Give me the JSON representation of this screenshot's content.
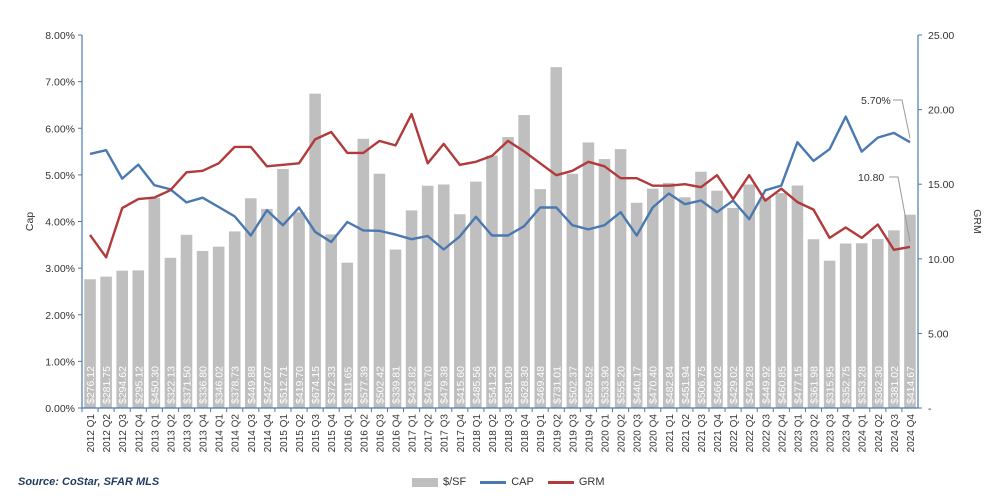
{
  "chart_data": {
    "type": "bar",
    "categories": [
      "2012 Q1",
      "2012 Q2",
      "2012 Q3",
      "2012 Q4",
      "2013 Q1",
      "2013 Q2",
      "2013 Q3",
      "2013 Q4",
      "2014 Q1",
      "2014 Q2",
      "2014 Q3",
      "2014 Q4",
      "2015 Q1",
      "2015 Q2",
      "2015 Q3",
      "2015 Q4",
      "2016 Q1",
      "2016 Q2",
      "2016 Q3",
      "2016 Q4",
      "2017 Q1",
      "2017 Q2",
      "2017 Q3",
      "2017 Q4",
      "2018 Q1",
      "2018 Q2",
      "2018 Q3",
      "2018 Q4",
      "2019 Q1",
      "2019 Q2",
      "2019 Q3",
      "2019 Q4",
      "2020 Q1",
      "2020 Q2",
      "2020 Q3",
      "2020 Q4",
      "2021 Q1",
      "2021 Q2",
      "2021 Q3",
      "2021 Q4",
      "2022 Q1",
      "2022 Q2",
      "2022 Q3",
      "2022 Q4",
      "2023 Q1",
      "2023 Q2",
      "2023 Q3",
      "2023 Q4",
      "2024 Q1",
      "2024 Q2",
      "2024 Q3",
      "2024 Q4"
    ],
    "series": [
      {
        "name": "$/SF",
        "axis": "none",
        "color": "#bfbfbf",
        "values": [
          276.12,
          281.75,
          294.62,
          295.12,
          450.3,
          322.13,
          371.5,
          336.8,
          346.02,
          378.73,
          449.88,
          427.07,
          512.71,
          419.7,
          674.15,
          372.33,
          311.65,
          577.39,
          502.42,
          339.81,
          423.82,
          476.7,
          479.38,
          415.6,
          485.56,
          541.23,
          581.09,
          628.3,
          469.48,
          731.01,
          502.37,
          569.52,
          533.9,
          555.2,
          440.17,
          470.4,
          482.84,
          451.94,
          506.75,
          466.02,
          429.02,
          479.28,
          449.92,
          460.85,
          477.15,
          361.98,
          315.95,
          352.75,
          353.28,
          362.3,
          381.02,
          414.67
        ],
        "labels": [
          "$276.12",
          "$281.75",
          "$294.62",
          "$295.12",
          "$450.30",
          "$322.13",
          "$371.50",
          "$336.80",
          "$346.02",
          "$378.73",
          "$449.88",
          "$427.07",
          "$512.71",
          "$419.70",
          "$674.15",
          "$372.33",
          "$311.65",
          "$577.39",
          "$502.42",
          "$339.81",
          "$423.82",
          "$476.70",
          "$479.38",
          "$415.60",
          "$485.56",
          "$541.23",
          "$581.09",
          "$628.30",
          "$469.48",
          "$731.01",
          "$502.37",
          "$569.52",
          "$533.90",
          "$555.20",
          "$440.17",
          "$470.40",
          "$482.84",
          "$451.94",
          "$506.75",
          "$466.02",
          "$429.02",
          "$479.28",
          "$449.92",
          "$460.85",
          "$477.15",
          "$361.98",
          "$315.95",
          "$352.75",
          "$353.28",
          "$362.30",
          "$381.02",
          "$414.67"
        ]
      },
      {
        "name": "CAP",
        "axis": "left",
        "color": "#4a78b0",
        "values": [
          0.0545,
          0.0553,
          0.0492,
          0.0522,
          0.0478,
          0.0469,
          0.0441,
          0.0451,
          0.0431,
          0.0411,
          0.037,
          0.0424,
          0.0392,
          0.043,
          0.0378,
          0.0356,
          0.0399,
          0.0381,
          0.038,
          0.0372,
          0.0362,
          0.0369,
          0.034,
          0.0368,
          0.041,
          0.037,
          0.037,
          0.039,
          0.043,
          0.043,
          0.0392,
          0.0383,
          0.0392,
          0.042,
          0.037,
          0.043,
          0.046,
          0.0437,
          0.0445,
          0.042,
          0.0445,
          0.0405,
          0.0467,
          0.0477,
          0.057,
          0.053,
          0.0555,
          0.0625,
          0.055,
          0.058,
          0.059,
          0.057
        ]
      },
      {
        "name": "GRM",
        "axis": "right",
        "color": "#b23a3a",
        "values": [
          11.6,
          10.1,
          13.4,
          14.0,
          14.1,
          14.6,
          15.8,
          15.9,
          16.4,
          17.5,
          17.5,
          16.2,
          16.3,
          16.4,
          18.0,
          18.5,
          17.1,
          17.1,
          17.9,
          17.6,
          19.7,
          16.4,
          17.7,
          16.3,
          16.5,
          16.9,
          17.9,
          17.2,
          16.4,
          15.6,
          15.9,
          16.5,
          16.2,
          15.4,
          15.4,
          14.9,
          14.9,
          15.0,
          14.8,
          15.6,
          14.0,
          15.6,
          13.9,
          14.7,
          13.8,
          13.3,
          11.4,
          12.1,
          11.4,
          12.3,
          10.6,
          10.8
        ]
      }
    ],
    "left_axis": {
      "label": "Cap",
      "ylim": [
        0,
        0.08
      ],
      "ticks": [
        "0.00%",
        "1.00%",
        "2.00%",
        "3.00%",
        "4.00%",
        "5.00%",
        "6.00%",
        "7.00%",
        "8.00%"
      ]
    },
    "right_axis": {
      "label": "GRM",
      "ylim": [
        0,
        25
      ],
      "ticks": [
        "-",
        "5.00",
        "10.00",
        "15.00",
        "20.00",
        "25.00"
      ]
    },
    "annotations": [
      "5.70%",
      "10.80"
    ],
    "grid": false,
    "legend_position": "bottom-center",
    "source": "Source: CoStar, SFAR MLS"
  }
}
